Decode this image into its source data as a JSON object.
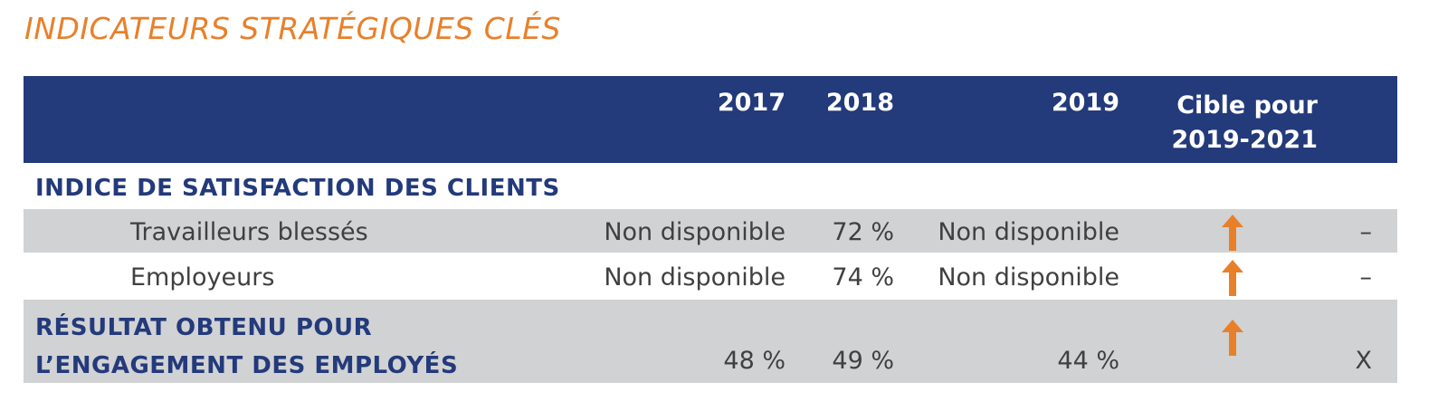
{
  "title": "INDICATEURS STRATÉGIQUES CLÉS",
  "header": {
    "y2017": "2017",
    "y2018": "2018",
    "y2019": "2019",
    "target_l1": "Cible pour",
    "target_l2": "2019-2021"
  },
  "section1": "INDICE DE SATISFACTION DES CLIENTS",
  "rows": [
    {
      "label": "Travailleurs blessés",
      "y2017": "Non disponible",
      "y2018": "72 %",
      "y2019": "Non disponible",
      "target": "up-arrow-icon",
      "last": "–"
    },
    {
      "label": "Employeurs",
      "y2017": "Non disponible",
      "y2018": "74 %",
      "y2019": "Non disponible",
      "target": "up-arrow-icon",
      "last": "–"
    }
  ],
  "engagement": {
    "label_l1": "RÉSULTAT OBTENU POUR",
    "label_l2": "L’ENGAGEMENT DES EMPLOYÉS",
    "y2017": "48 %",
    "y2018": "49 %",
    "y2019": "44 %",
    "target": "up-arrow-icon",
    "last": "X"
  },
  "colors": {
    "accent": "#e8802a",
    "header_bg": "#233a7b",
    "row_gray": "#d1d2d4"
  }
}
